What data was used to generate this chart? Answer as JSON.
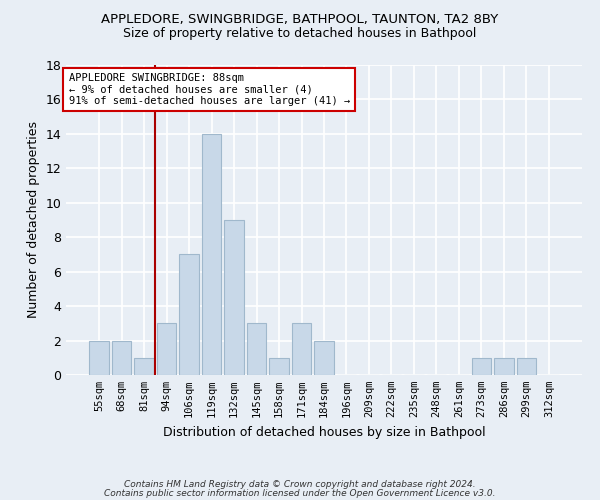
{
  "title1": "APPLEDORE, SWINGBRIDGE, BATHPOOL, TAUNTON, TA2 8BY",
  "title2": "Size of property relative to detached houses in Bathpool",
  "xlabel": "Distribution of detached houses by size in Bathpool",
  "ylabel": "Number of detached properties",
  "footnote1": "Contains HM Land Registry data © Crown copyright and database right 2024.",
  "footnote2": "Contains public sector information licensed under the Open Government Licence v3.0.",
  "bar_labels": [
    "55sqm",
    "68sqm",
    "81sqm",
    "94sqm",
    "106sqm",
    "119sqm",
    "132sqm",
    "145sqm",
    "158sqm",
    "171sqm",
    "184sqm",
    "196sqm",
    "209sqm",
    "222sqm",
    "235sqm",
    "248sqm",
    "261sqm",
    "273sqm",
    "286sqm",
    "299sqm",
    "312sqm"
  ],
  "bar_values": [
    2,
    2,
    1,
    3,
    7,
    14,
    9,
    3,
    1,
    3,
    2,
    0,
    0,
    0,
    0,
    0,
    0,
    1,
    1,
    1,
    0
  ],
  "bar_color": "#c8d8e8",
  "bar_edgecolor": "#a0b8cc",
  "vline_x_idx": 3,
  "vline_color": "#aa0000",
  "annotation_line1": "APPLEDORE SWINGBRIDGE: 88sqm",
  "annotation_line2": "← 9% of detached houses are smaller (4)",
  "annotation_line3": "91% of semi-detached houses are larger (41) →",
  "annotation_box_edgecolor": "#cc0000",
  "annotation_box_facecolor": "#ffffff",
  "ylim": [
    0,
    18
  ],
  "yticks": [
    0,
    2,
    4,
    6,
    8,
    10,
    12,
    14,
    16,
    18
  ],
  "bg_color": "#e8eef5",
  "grid_color": "#ffffff",
  "title1_fontsize": 9.5,
  "title2_fontsize": 9,
  "ylabel_fontsize": 9,
  "xlabel_fontsize": 9,
  "tick_fontsize": 7.5,
  "footnote_fontsize": 6.5
}
